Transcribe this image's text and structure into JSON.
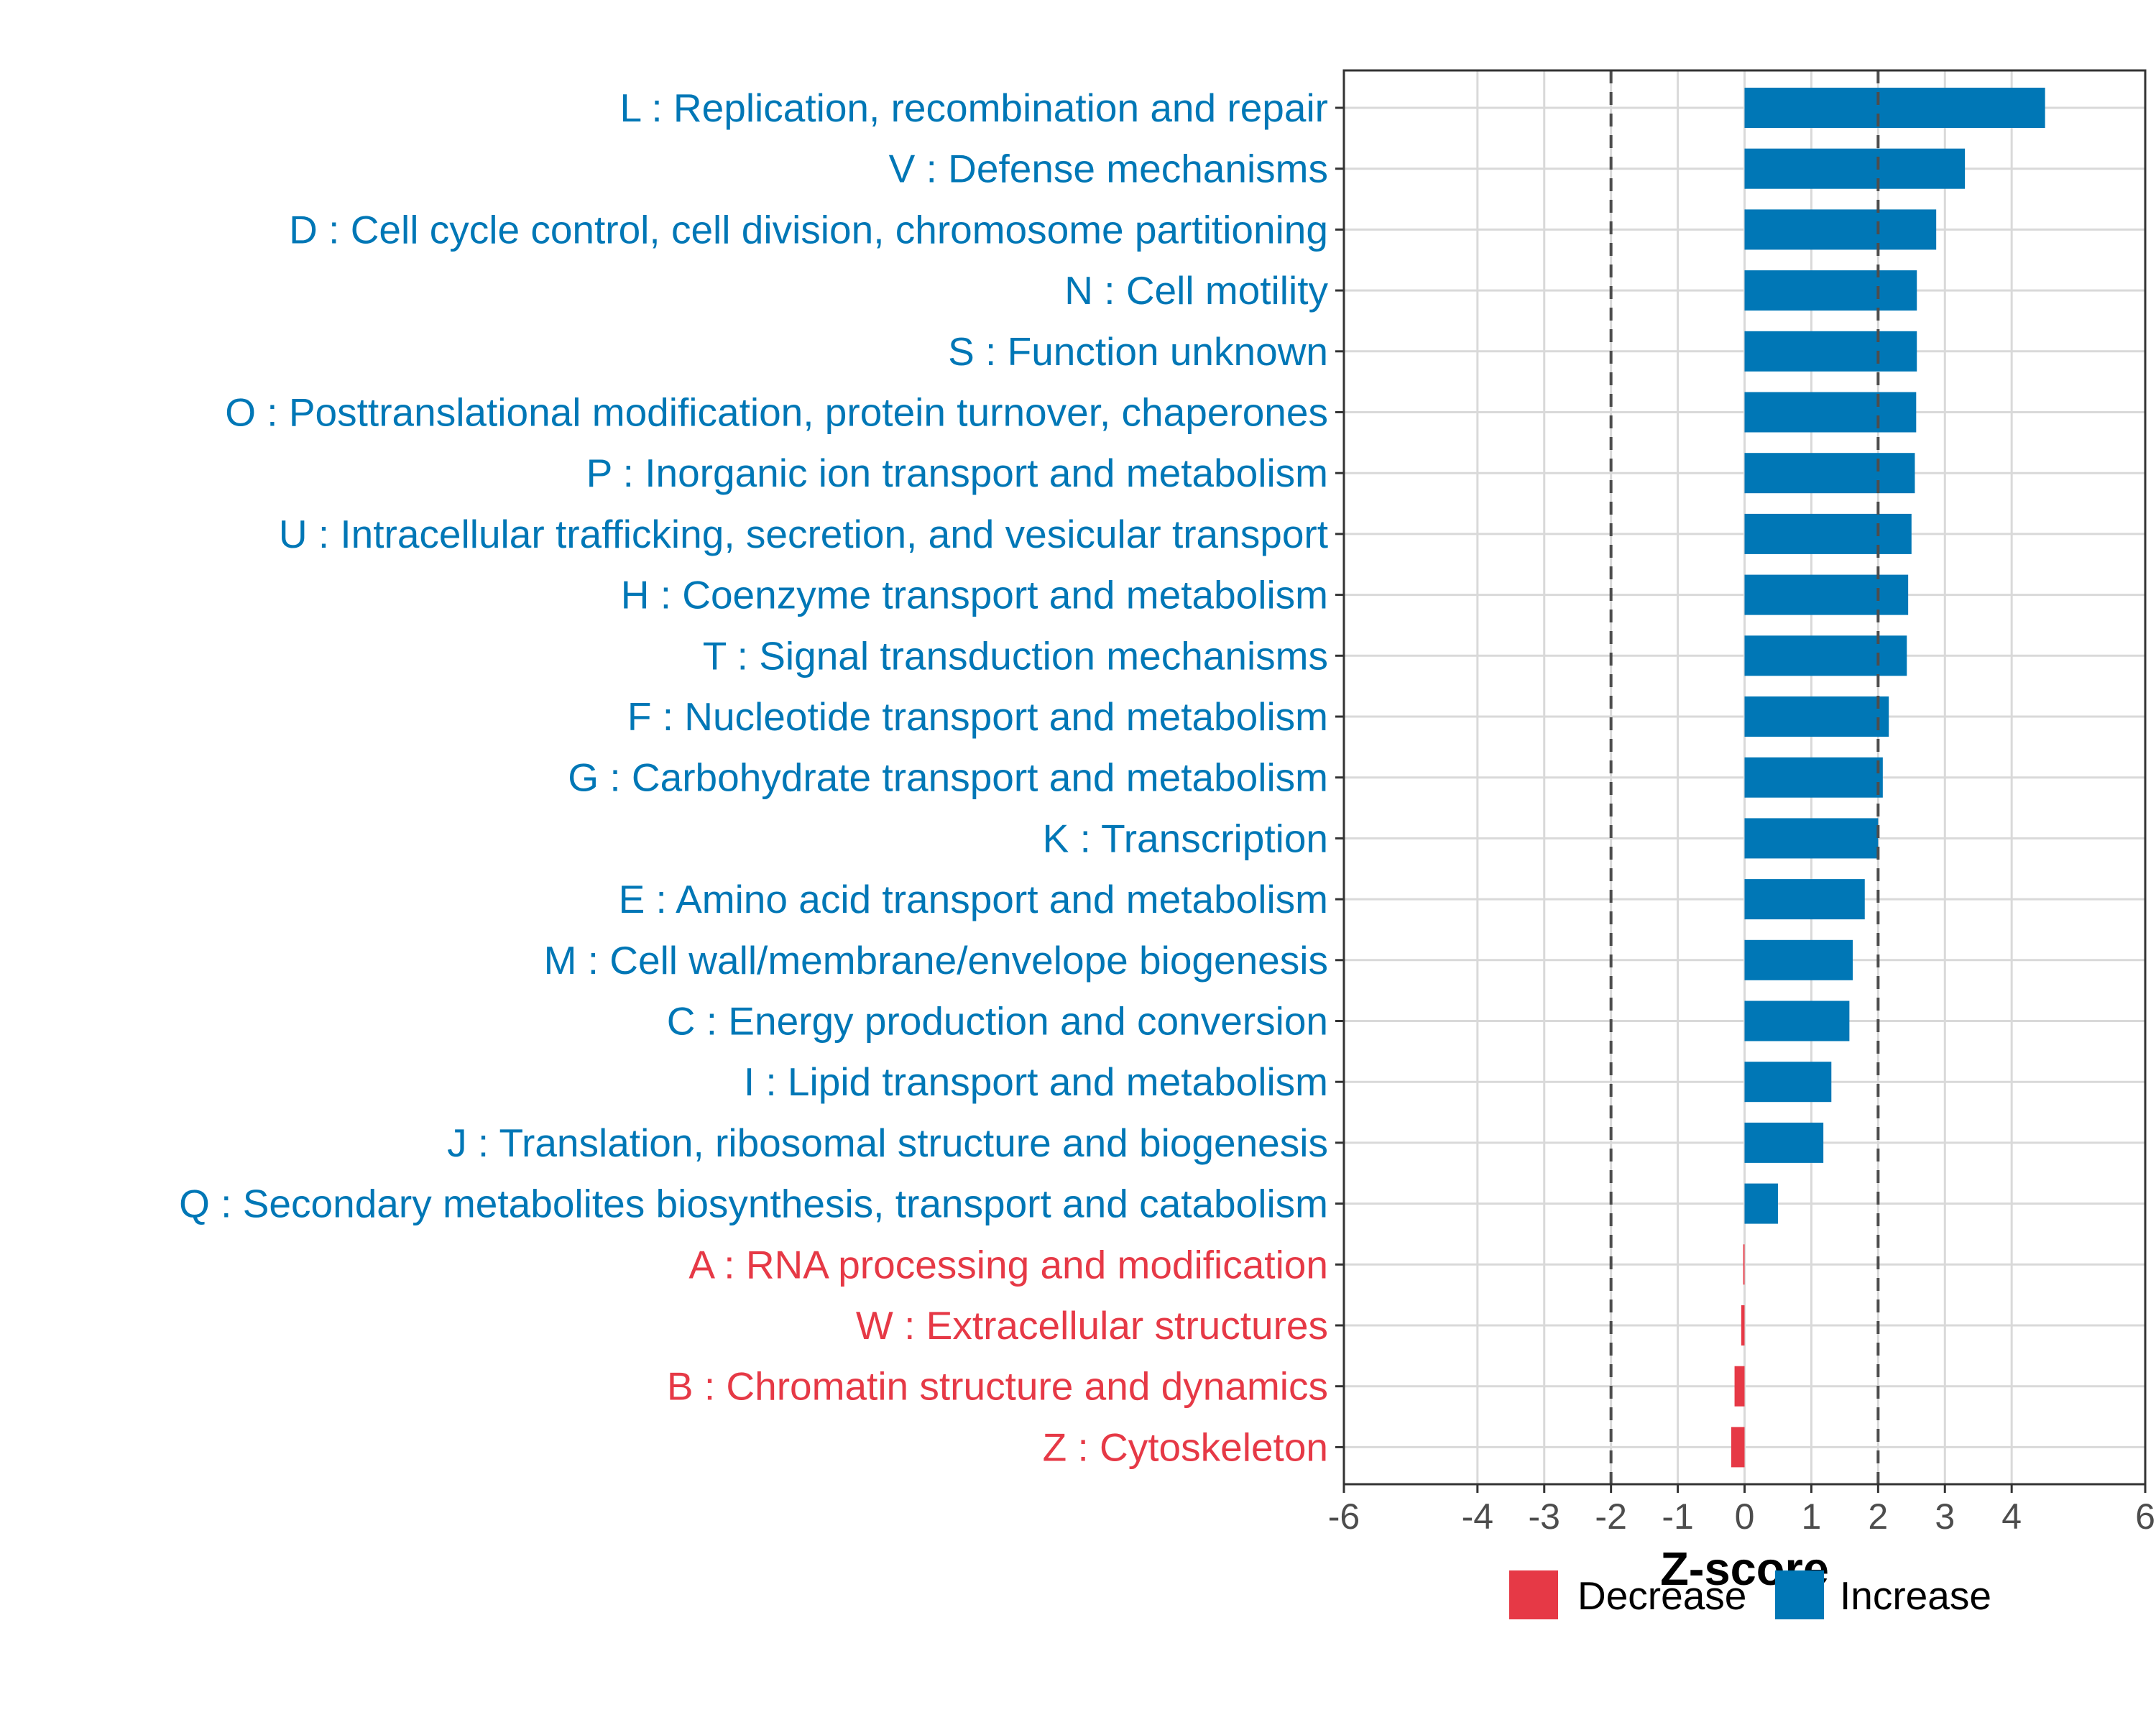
{
  "colors": {
    "increase": "#0077b6",
    "decrease": "#e63946",
    "grid": "#d9d9d9",
    "threshold": "#4d4d4d"
  },
  "chart_data": {
    "type": "bar",
    "orientation": "horizontal",
    "xlabel": "Z-score",
    "xlim": [
      -6,
      6
    ],
    "x_ticks": [
      -6,
      -4,
      -3,
      -2,
      -1,
      0,
      1,
      2,
      3,
      4,
      6
    ],
    "x_tick_labels": [
      "-6",
      "-4",
      "-3",
      "-2",
      "-1",
      "0",
      "1",
      "2",
      "3",
      "4",
      "6"
    ],
    "threshold_lines": [
      -2,
      2
    ],
    "grid": true,
    "legend": {
      "position": "bottom",
      "entries": [
        {
          "label": "Decrease",
          "key": "decrease"
        },
        {
          "label": "Increase",
          "key": "increase"
        }
      ]
    },
    "categories": [
      "L : Replication, recombination and repair",
      "V : Defense mechanisms",
      "D : Cell cycle control, cell division, chromosome partitioning",
      "N : Cell motility",
      "S : Function unknown",
      "O : Posttranslational modification, protein turnover, chaperones",
      "P : Inorganic ion transport and metabolism",
      "U : Intracellular trafficking, secretion, and vesicular transport",
      "H : Coenzyme transport and metabolism",
      "T : Signal transduction mechanisms",
      "F : Nucleotide transport and metabolism",
      "G : Carbohydrate transport and metabolism",
      "K : Transcription",
      "E : Amino acid transport and metabolism",
      "M : Cell wall/membrane/envelope biogenesis",
      "C : Energy production and conversion",
      "I : Lipid transport and metabolism",
      "J : Translation, ribosomal structure and biogenesis",
      "Q : Secondary metabolites biosynthesis, transport and catabolism",
      "A : RNA processing and modification",
      "W : Extracellular structures",
      "B : Chromatin structure and dynamics",
      "Z : Cytoskeleton"
    ],
    "values": [
      4.5,
      3.3,
      2.87,
      2.58,
      2.58,
      2.57,
      2.55,
      2.5,
      2.45,
      2.43,
      2.16,
      2.07,
      2.0,
      1.8,
      1.62,
      1.57,
      1.3,
      1.18,
      0.5,
      -0.02,
      -0.05,
      -0.15,
      -0.2
    ],
    "directions": [
      "increase",
      "increase",
      "increase",
      "increase",
      "increase",
      "increase",
      "increase",
      "increase",
      "increase",
      "increase",
      "increase",
      "increase",
      "increase",
      "increase",
      "increase",
      "increase",
      "increase",
      "increase",
      "increase",
      "decrease",
      "decrease",
      "decrease",
      "decrease"
    ]
  }
}
